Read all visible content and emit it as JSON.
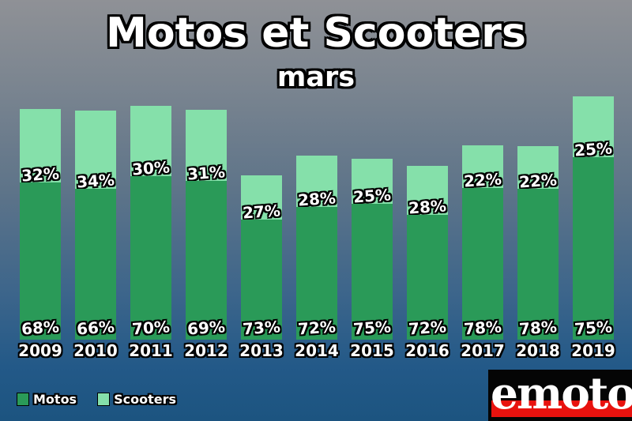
{
  "title": "Motos et Scooters",
  "subtitle": "mars",
  "legend": {
    "items": [
      {
        "label": "Motos",
        "color": "#2a9a58"
      },
      {
        "label": "Scooters",
        "color": "#85e0aa"
      }
    ]
  },
  "logo": {
    "text": "emoto",
    "bg_color": "#050505",
    "stripe_color": "#e8120e",
    "text_color": "#ffffff"
  },
  "colors": {
    "motos": "#2a9a58",
    "scooters": "#85e0aa",
    "background_top": "#8f9196",
    "background_bottom": "#1c5480",
    "label_text": "#ffffff",
    "label_outline": "#000000"
  },
  "chart_data": {
    "type": "bar",
    "stacked": true,
    "title": "Motos et Scooters",
    "subtitle": "mars",
    "categories": [
      "2009",
      "2010",
      "2011",
      "2012",
      "2013",
      "2014",
      "2015",
      "2016",
      "2017",
      "2018",
      "2019"
    ],
    "series": [
      {
        "name": "Motos",
        "color": "#2a9a58",
        "values_pct": [
          68,
          66,
          70,
          69,
          73,
          72,
          75,
          72,
          78,
          78,
          75
        ]
      },
      {
        "name": "Scooters",
        "color": "#85e0aa",
        "values_pct": [
          32,
          34,
          30,
          31,
          27,
          28,
          25,
          28,
          22,
          22,
          25
        ]
      }
    ],
    "relative_totals": [
      0.948,
      0.942,
      0.961,
      0.945,
      0.675,
      0.757,
      0.744,
      0.714,
      0.799,
      0.795,
      1.0
    ],
    "value_label_format": "{value}%",
    "legend_position": "bottom-left",
    "axes_hidden": true,
    "gridlines": false
  }
}
